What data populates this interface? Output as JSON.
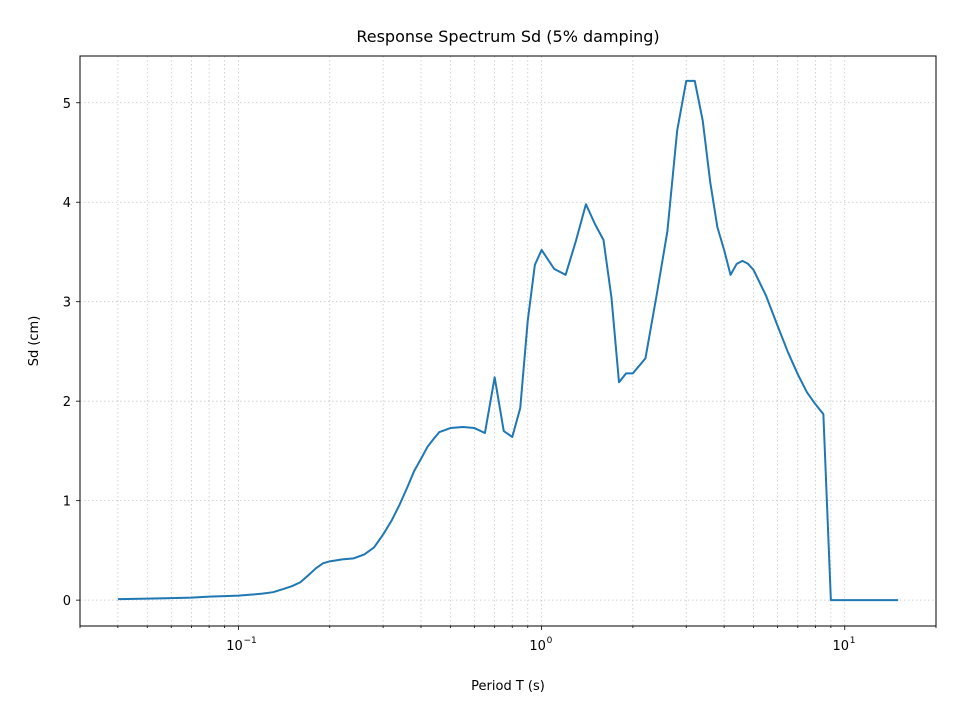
{
  "chart_data": {
    "type": "line",
    "title": "Response Spectrum Sd (5% damping)",
    "xlabel": "Period T (s)",
    "ylabel": "Sd (cm)",
    "xscale": "log",
    "xlim": [
      0.03,
      20
    ],
    "ylim": [
      -0.26,
      5.47
    ],
    "grid": true,
    "line_color": "#1f77b4",
    "x_ticks": [
      {
        "value": 0.1,
        "base": "10",
        "exp": "−1"
      },
      {
        "value": 1,
        "base": "10",
        "exp": "0"
      },
      {
        "value": 10,
        "base": "10",
        "exp": "1"
      }
    ],
    "y_ticks": [
      {
        "value": 0,
        "label": "0"
      },
      {
        "value": 1,
        "label": "1"
      },
      {
        "value": 2,
        "label": "2"
      },
      {
        "value": 3,
        "label": "3"
      },
      {
        "value": 4,
        "label": "4"
      },
      {
        "value": 5,
        "label": "5"
      }
    ],
    "series": [
      {
        "x": [
          0.04,
          0.05,
          0.06,
          0.07,
          0.08,
          0.09,
          0.1,
          0.11,
          0.12,
          0.13,
          0.14,
          0.15,
          0.16,
          0.17,
          0.18,
          0.19,
          0.2,
          0.22,
          0.24,
          0.26,
          0.28,
          0.3,
          0.32,
          0.34,
          0.36,
          0.38,
          0.4,
          0.42,
          0.44,
          0.46,
          0.48,
          0.5,
          0.55,
          0.6,
          0.65,
          0.7,
          0.75,
          0.8,
          0.85,
          0.9,
          0.95,
          1.0,
          1.1,
          1.2,
          1.3,
          1.4,
          1.5,
          1.6,
          1.7,
          1.8,
          1.9,
          2.0,
          2.2,
          2.4,
          2.6,
          2.8,
          3.0,
          3.2,
          3.4,
          3.6,
          3.8,
          4.0,
          4.2,
          4.4,
          4.6,
          4.8,
          5.0,
          5.5,
          6.0,
          6.5,
          7.0,
          7.5,
          8.0,
          8.5,
          9.0,
          10.0,
          12.0,
          15.0
        ],
        "y": [
          0.01,
          0.015,
          0.02,
          0.025,
          0.035,
          0.04,
          0.045,
          0.055,
          0.065,
          0.08,
          0.11,
          0.14,
          0.18,
          0.25,
          0.32,
          0.37,
          0.39,
          0.41,
          0.42,
          0.46,
          0.53,
          0.66,
          0.8,
          0.96,
          1.13,
          1.3,
          1.42,
          1.54,
          1.62,
          1.69,
          1.71,
          1.73,
          1.74,
          1.73,
          1.68,
          2.24,
          1.7,
          1.64,
          1.93,
          2.81,
          3.37,
          3.52,
          3.33,
          3.27,
          3.62,
          3.98,
          3.78,
          3.62,
          3.04,
          2.19,
          2.28,
          2.28,
          2.43,
          3.08,
          3.71,
          4.72,
          5.22,
          5.22,
          4.82,
          4.2,
          3.75,
          3.52,
          3.27,
          3.38,
          3.41,
          3.38,
          3.32,
          3.06,
          2.76,
          2.49,
          2.27,
          2.09,
          1.97,
          1.87,
          0.0,
          0.0,
          0.0,
          0.0
        ]
      }
    ]
  }
}
